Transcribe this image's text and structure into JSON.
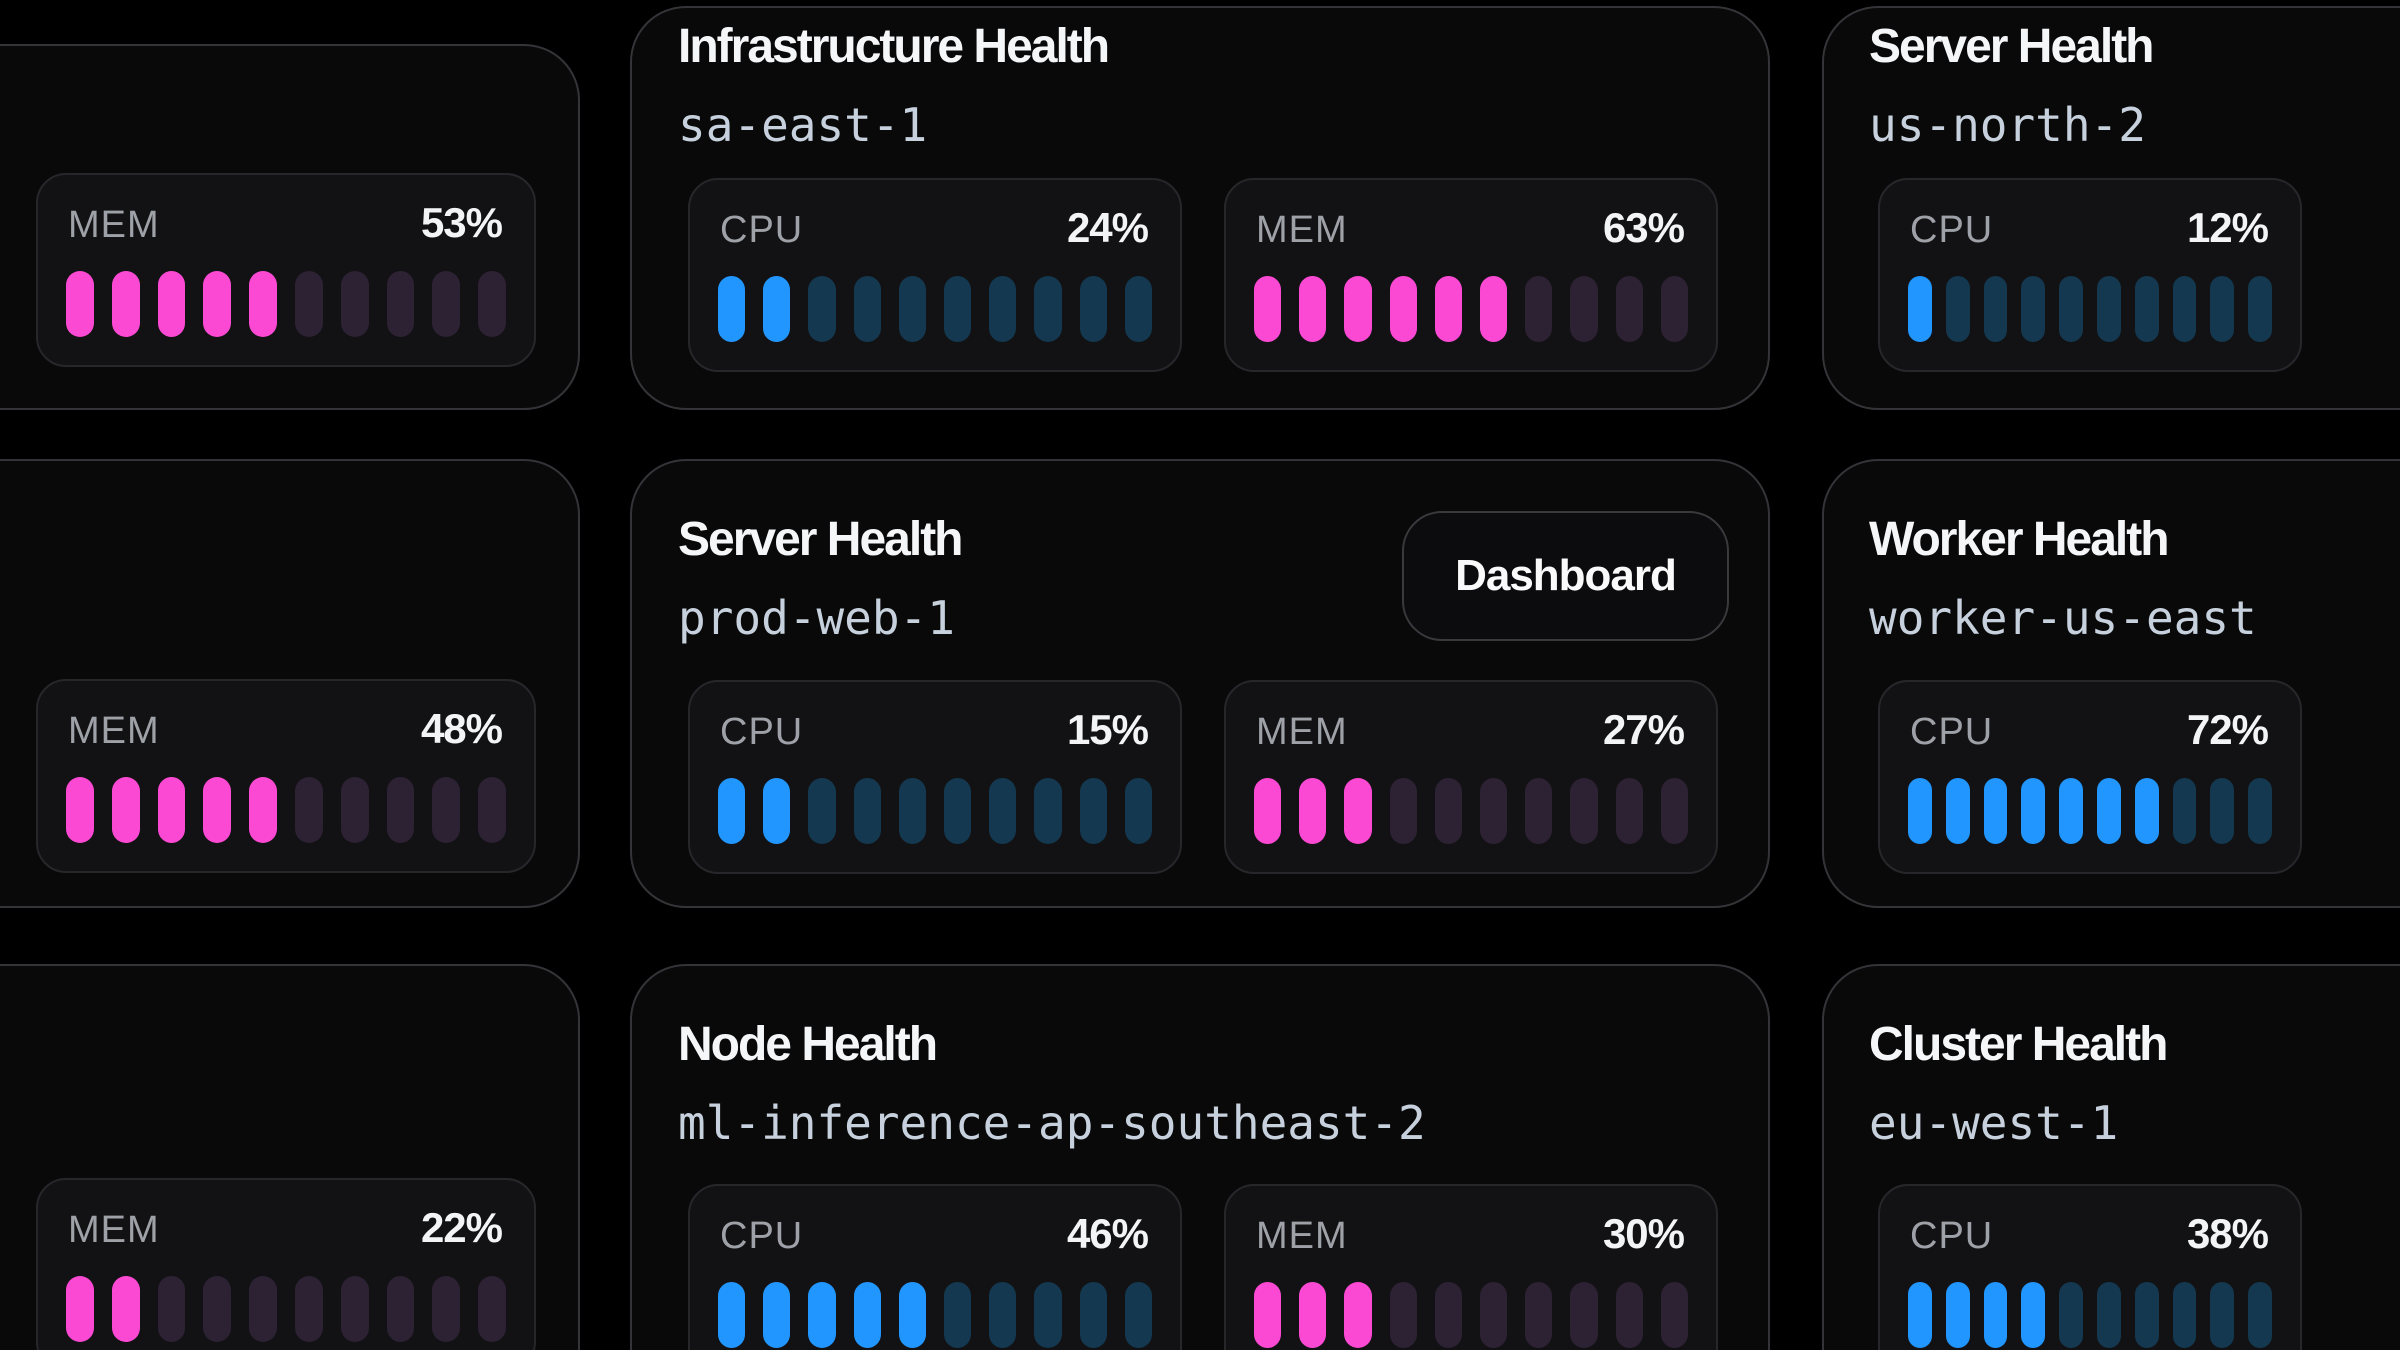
{
  "page": {
    "background": "#000000"
  },
  "colors": {
    "blue_on": "#2196ff",
    "blue_off": "#14384f",
    "pink_on": "#fc49d3",
    "pink_off": "#2d2134"
  },
  "meter_segments": 10,
  "cards": [
    {
      "id": "a1",
      "meters": [
        {
          "label": "MEM",
          "value": "53%",
          "percent": 53,
          "filled": 5,
          "color": "pink"
        }
      ]
    },
    {
      "id": "b1",
      "title": "Infrastructure Health",
      "subtitle": "sa-east-1",
      "meters": [
        {
          "label": "CPU",
          "value": "24%",
          "percent": 24,
          "filled": 2,
          "color": "blue"
        },
        {
          "label": "MEM",
          "value": "63%",
          "percent": 63,
          "filled": 6,
          "color": "pink"
        }
      ]
    },
    {
      "id": "c1",
      "title": "Server Health",
      "subtitle": "us-north-2",
      "meters": [
        {
          "label": "CPU",
          "value": "12%",
          "percent": 12,
          "filled": 1,
          "color": "blue"
        }
      ]
    },
    {
      "id": "a2",
      "meters": [
        {
          "label": "MEM",
          "value": "48%",
          "percent": 48,
          "filled": 5,
          "color": "pink"
        }
      ]
    },
    {
      "id": "b2",
      "title": "Server Health",
      "subtitle": "prod-web-1",
      "button_label": "Dashboard",
      "meters": [
        {
          "label": "CPU",
          "value": "15%",
          "percent": 15,
          "filled": 2,
          "color": "blue"
        },
        {
          "label": "MEM",
          "value": "27%",
          "percent": 27,
          "filled": 3,
          "color": "pink"
        }
      ]
    },
    {
      "id": "c2",
      "title": "Worker Health",
      "subtitle": "worker-us-east",
      "meters": [
        {
          "label": "CPU",
          "value": "72%",
          "percent": 72,
          "filled": 7,
          "color": "blue"
        }
      ]
    },
    {
      "id": "a3",
      "meters": [
        {
          "label": "MEM",
          "value": "22%",
          "percent": 22,
          "filled": 2,
          "color": "pink"
        }
      ]
    },
    {
      "id": "b3",
      "title": "Node Health",
      "subtitle": "ml-inference-ap-southeast-2",
      "meters": [
        {
          "label": "CPU",
          "value": "46%",
          "percent": 46,
          "filled": 5,
          "color": "blue"
        },
        {
          "label": "MEM",
          "value": "30%",
          "percent": 30,
          "filled": 3,
          "color": "pink"
        }
      ]
    },
    {
      "id": "c3",
      "title": "Cluster Health",
      "subtitle": "eu-west-1",
      "meters": [
        {
          "label": "CPU",
          "value": "38%",
          "percent": 38,
          "filled": 4,
          "color": "blue"
        }
      ]
    }
  ]
}
